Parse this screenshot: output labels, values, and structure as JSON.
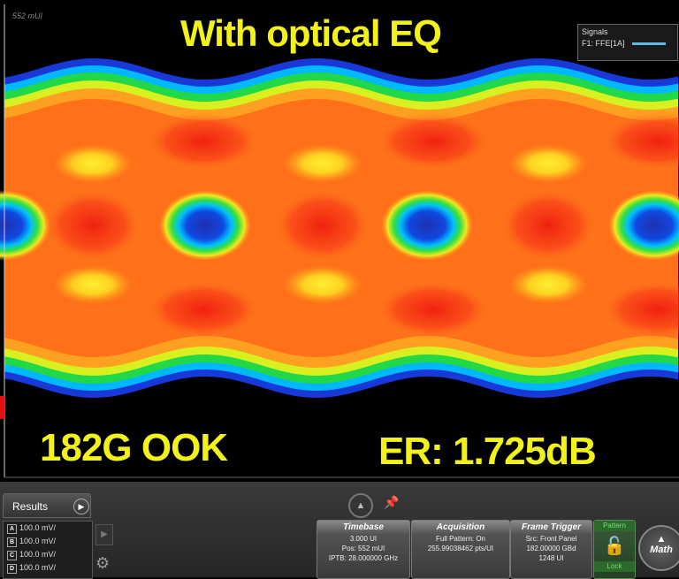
{
  "screen": {
    "marker": "552 mUI",
    "title": "With optical EQ",
    "legend": {
      "title": "Signals",
      "entry": "F1: FFE[1A]"
    },
    "left_label": "182G OOK",
    "right_label": "ER: 1.725dB"
  },
  "results": {
    "title": "Results",
    "channels": [
      {
        "id": "A",
        "scale": "100.0 mV/"
      },
      {
        "id": "B",
        "scale": "100.0 mV/"
      },
      {
        "id": "C",
        "scale": "100.0 mV/"
      },
      {
        "id": "D",
        "scale": "100.0 mV/"
      }
    ]
  },
  "panels": [
    {
      "title": "Timebase",
      "lines": [
        "3.000 UI",
        "Pos: 552 mUI",
        "IPTB: 28.000000 GHz"
      ]
    },
    {
      "title": "Acquisition",
      "lines": [
        "Full Pattern: On",
        "255.99038462 pts/UI"
      ]
    },
    {
      "title": "Frame Trigger",
      "lines": [
        "Src: Front Panel",
        "182.00000 GBd",
        "1248 UI"
      ]
    }
  ],
  "pattern": "Pattern",
  "lock": "Lock",
  "math": "Math"
}
